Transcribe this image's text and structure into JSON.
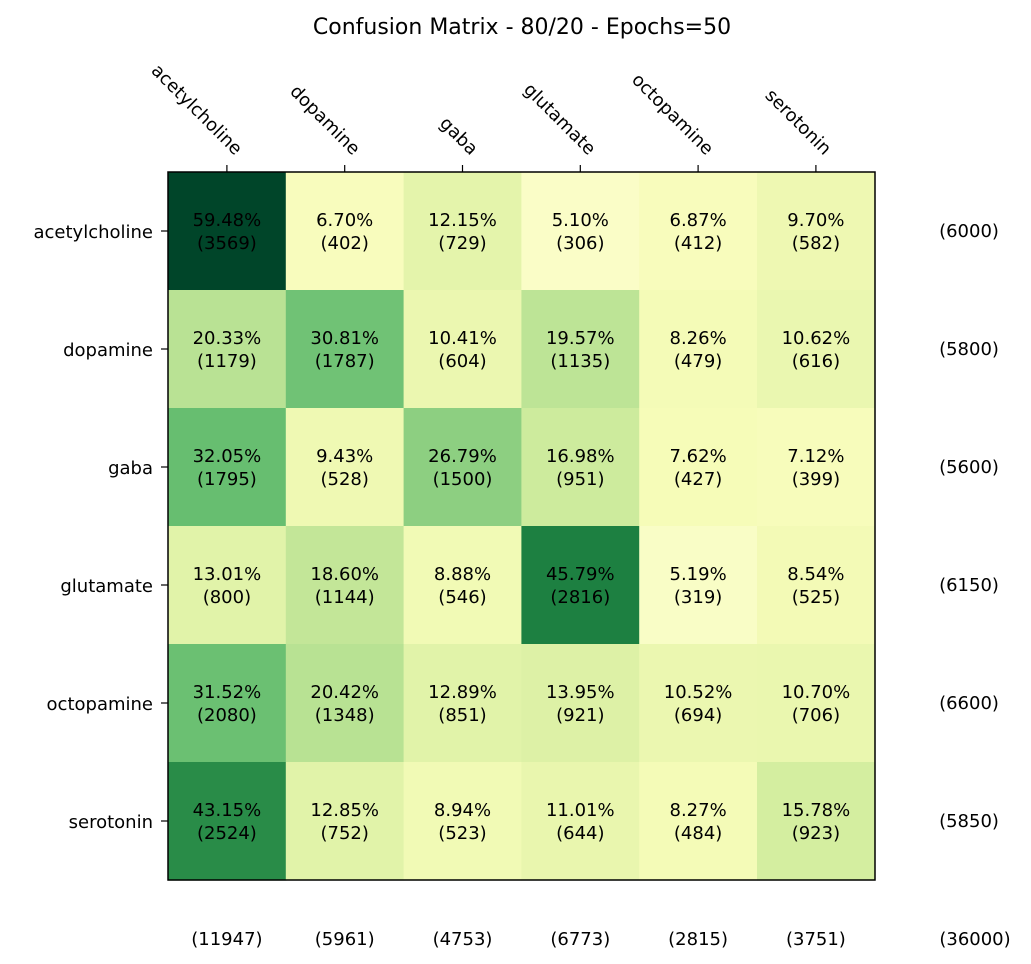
{
  "chart_data": {
    "type": "heatmap",
    "title": "Confusion Matrix - 80/20 - Epochs=50",
    "xlabel": "",
    "ylabel": "",
    "classes": [
      "acetylcholine",
      "dopamine",
      "gaba",
      "glutamate",
      "octopamine",
      "serotonin"
    ],
    "percents": [
      [
        "59.48%",
        "6.70%",
        "12.15%",
        "5.10%",
        "6.87%",
        "9.70%"
      ],
      [
        "20.33%",
        "30.81%",
        "10.41%",
        "19.57%",
        "8.26%",
        "10.62%"
      ],
      [
        "32.05%",
        "9.43%",
        "26.79%",
        "16.98%",
        "7.62%",
        "7.12%"
      ],
      [
        "13.01%",
        "18.60%",
        "8.88%",
        "45.79%",
        "5.19%",
        "8.54%"
      ],
      [
        "31.52%",
        "20.42%",
        "12.89%",
        "13.95%",
        "10.52%",
        "10.70%"
      ],
      [
        "43.15%",
        "12.85%",
        "8.94%",
        "11.01%",
        "8.27%",
        "15.78%"
      ]
    ],
    "counts": [
      [
        "(3569)",
        "(402)",
        "(729)",
        "(306)",
        "(412)",
        "(582)"
      ],
      [
        "(1179)",
        "(1787)",
        "(604)",
        "(1135)",
        "(479)",
        "(616)"
      ],
      [
        "(1795)",
        "(528)",
        "(1500)",
        "(951)",
        "(427)",
        "(399)"
      ],
      [
        "(800)",
        "(1144)",
        "(546)",
        "(2816)",
        "(319)",
        "(525)"
      ],
      [
        "(2080)",
        "(1348)",
        "(851)",
        "(921)",
        "(694)",
        "(706)"
      ],
      [
        "(2524)",
        "(752)",
        "(523)",
        "(644)",
        "(484)",
        "(923)"
      ]
    ],
    "values": [
      [
        59.48,
        6.7,
        12.15,
        5.1,
        6.87,
        9.7
      ],
      [
        20.33,
        30.81,
        10.41,
        19.57,
        8.26,
        10.62
      ],
      [
        32.05,
        9.43,
        26.79,
        16.98,
        7.62,
        7.12
      ],
      [
        13.01,
        18.6,
        8.88,
        45.79,
        5.19,
        8.54
      ],
      [
        31.52,
        20.42,
        12.89,
        13.95,
        10.52,
        10.7
      ],
      [
        43.15,
        12.85,
        8.94,
        11.01,
        8.27,
        15.78
      ]
    ],
    "row_totals": [
      "(6000)",
      "(5800)",
      "(5600)",
      "(6150)",
      "(6600)",
      "(5850)"
    ],
    "col_totals": [
      "(11947)",
      "(5961)",
      "(4753)",
      "(6773)",
      "(2815)",
      "(3751)"
    ],
    "grand_total": "(36000)",
    "colormap": "YlGn",
    "vmin": 0,
    "vmax": 59.48
  }
}
